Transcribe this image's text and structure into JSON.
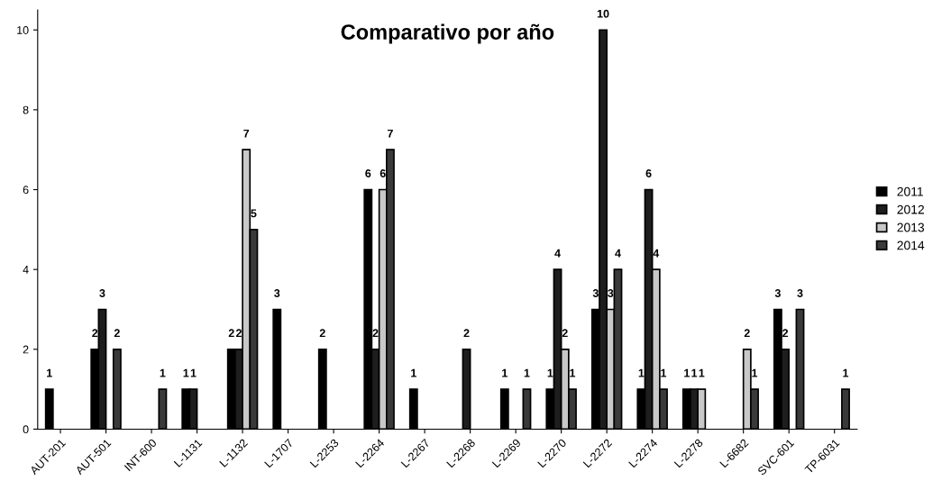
{
  "chart_data": {
    "type": "bar",
    "title": "Comparativo por año",
    "categories": [
      "AUT-201",
      "AUT-501",
      "INT-600",
      "L-1131",
      "L-1132",
      "L-1707",
      "L-2253",
      "L-2264",
      "L-2267",
      "L-2268",
      "L-2269",
      "L-2270",
      "L-2272",
      "L-2274",
      "L-2278",
      "L-6682",
      "SVC-601",
      "TP-6031"
    ],
    "series": [
      {
        "name": "2011",
        "color": "#000000",
        "values": [
          1,
          2,
          null,
          1,
          2,
          3,
          2,
          6,
          1,
          null,
          1,
          1,
          3,
          1,
          1,
          null,
          3,
          null
        ]
      },
      {
        "name": "2012",
        "color": "#1e1e1e",
        "values": [
          null,
          3,
          null,
          1,
          2,
          null,
          null,
          2,
          null,
          2,
          null,
          4,
          10,
          6,
          1,
          null,
          2,
          null
        ]
      },
      {
        "name": "2013",
        "color": "#c8c8c8",
        "values": [
          null,
          null,
          null,
          null,
          7,
          null,
          null,
          6,
          null,
          null,
          null,
          2,
          3,
          4,
          1,
          2,
          null,
          null
        ]
      },
      {
        "name": "2014",
        "color": "#3a3a3a",
        "values": [
          null,
          2,
          1,
          null,
          5,
          null,
          null,
          7,
          null,
          null,
          1,
          1,
          4,
          1,
          null,
          1,
          3,
          1
        ]
      }
    ],
    "ylim": [
      0,
      10.5
    ],
    "yticks": [
      0,
      2,
      4,
      6,
      8,
      10
    ],
    "data_labels": true,
    "legend": "right",
    "grid": false
  }
}
